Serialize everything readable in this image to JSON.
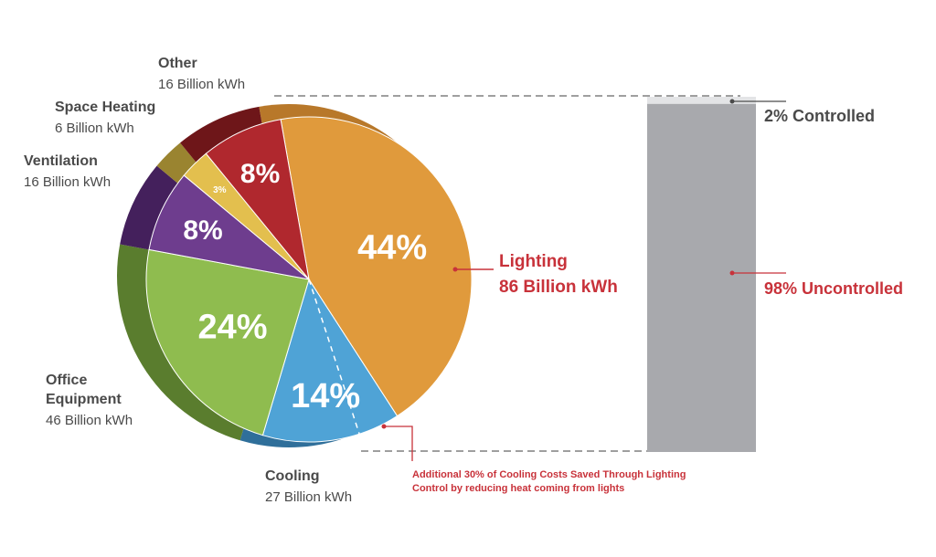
{
  "chart_data": {
    "type": "pie",
    "title": "",
    "slices": [
      {
        "label": "Lighting",
        "value_label": "86 Billion kWh",
        "value": 86,
        "percent": 44,
        "percent_label": "44%",
        "color": "#e09a3c",
        "side_color": "#b8782a"
      },
      {
        "label": "Cooling",
        "value_label": "27 Billion kWh",
        "value": 27,
        "percent": 14,
        "percent_label": "14%",
        "color": "#4fa3d6",
        "side_color": "#2f6f9a"
      },
      {
        "label": "Office Equipment",
        "value_label": "46 Billion kWh",
        "value": 46,
        "percent": 24,
        "percent_label": "24%",
        "color": "#8fbc4f",
        "side_color": "#5a7d2e"
      },
      {
        "label": "Ventilation",
        "value_label": "16 Billion kWh",
        "value": 16,
        "percent": 8,
        "percent_label": "8%",
        "color": "#6e3d8e",
        "side_color": "#44205c"
      },
      {
        "label": "Space Heating",
        "value_label": "6 Billion kWh",
        "value": 6,
        "percent": 3,
        "percent_label": "3%",
        "color": "#e3bf4e",
        "side_color": "#9a8430"
      },
      {
        "label": "Other",
        "value_label": "16 Billion kWh",
        "value": 16,
        "percent": 8,
        "percent_label": "8%",
        "color": "#b0282e",
        "side_color": "#6e1619"
      }
    ],
    "breakdown_bar": {
      "category": "Lighting",
      "segments": [
        {
          "label": "2% Controlled",
          "percent": 2,
          "color": "#e3e4e6"
        },
        {
          "label": "98% Uncontrolled",
          "percent": 98,
          "color": "#a8a9ad"
        }
      ]
    },
    "annotation": {
      "line1": "Additional 30% of Cooling Costs Saved Through Lighting",
      "line2": "Control by reducing heat coming from lights",
      "cooling_saved_fraction": 0.3
    }
  }
}
